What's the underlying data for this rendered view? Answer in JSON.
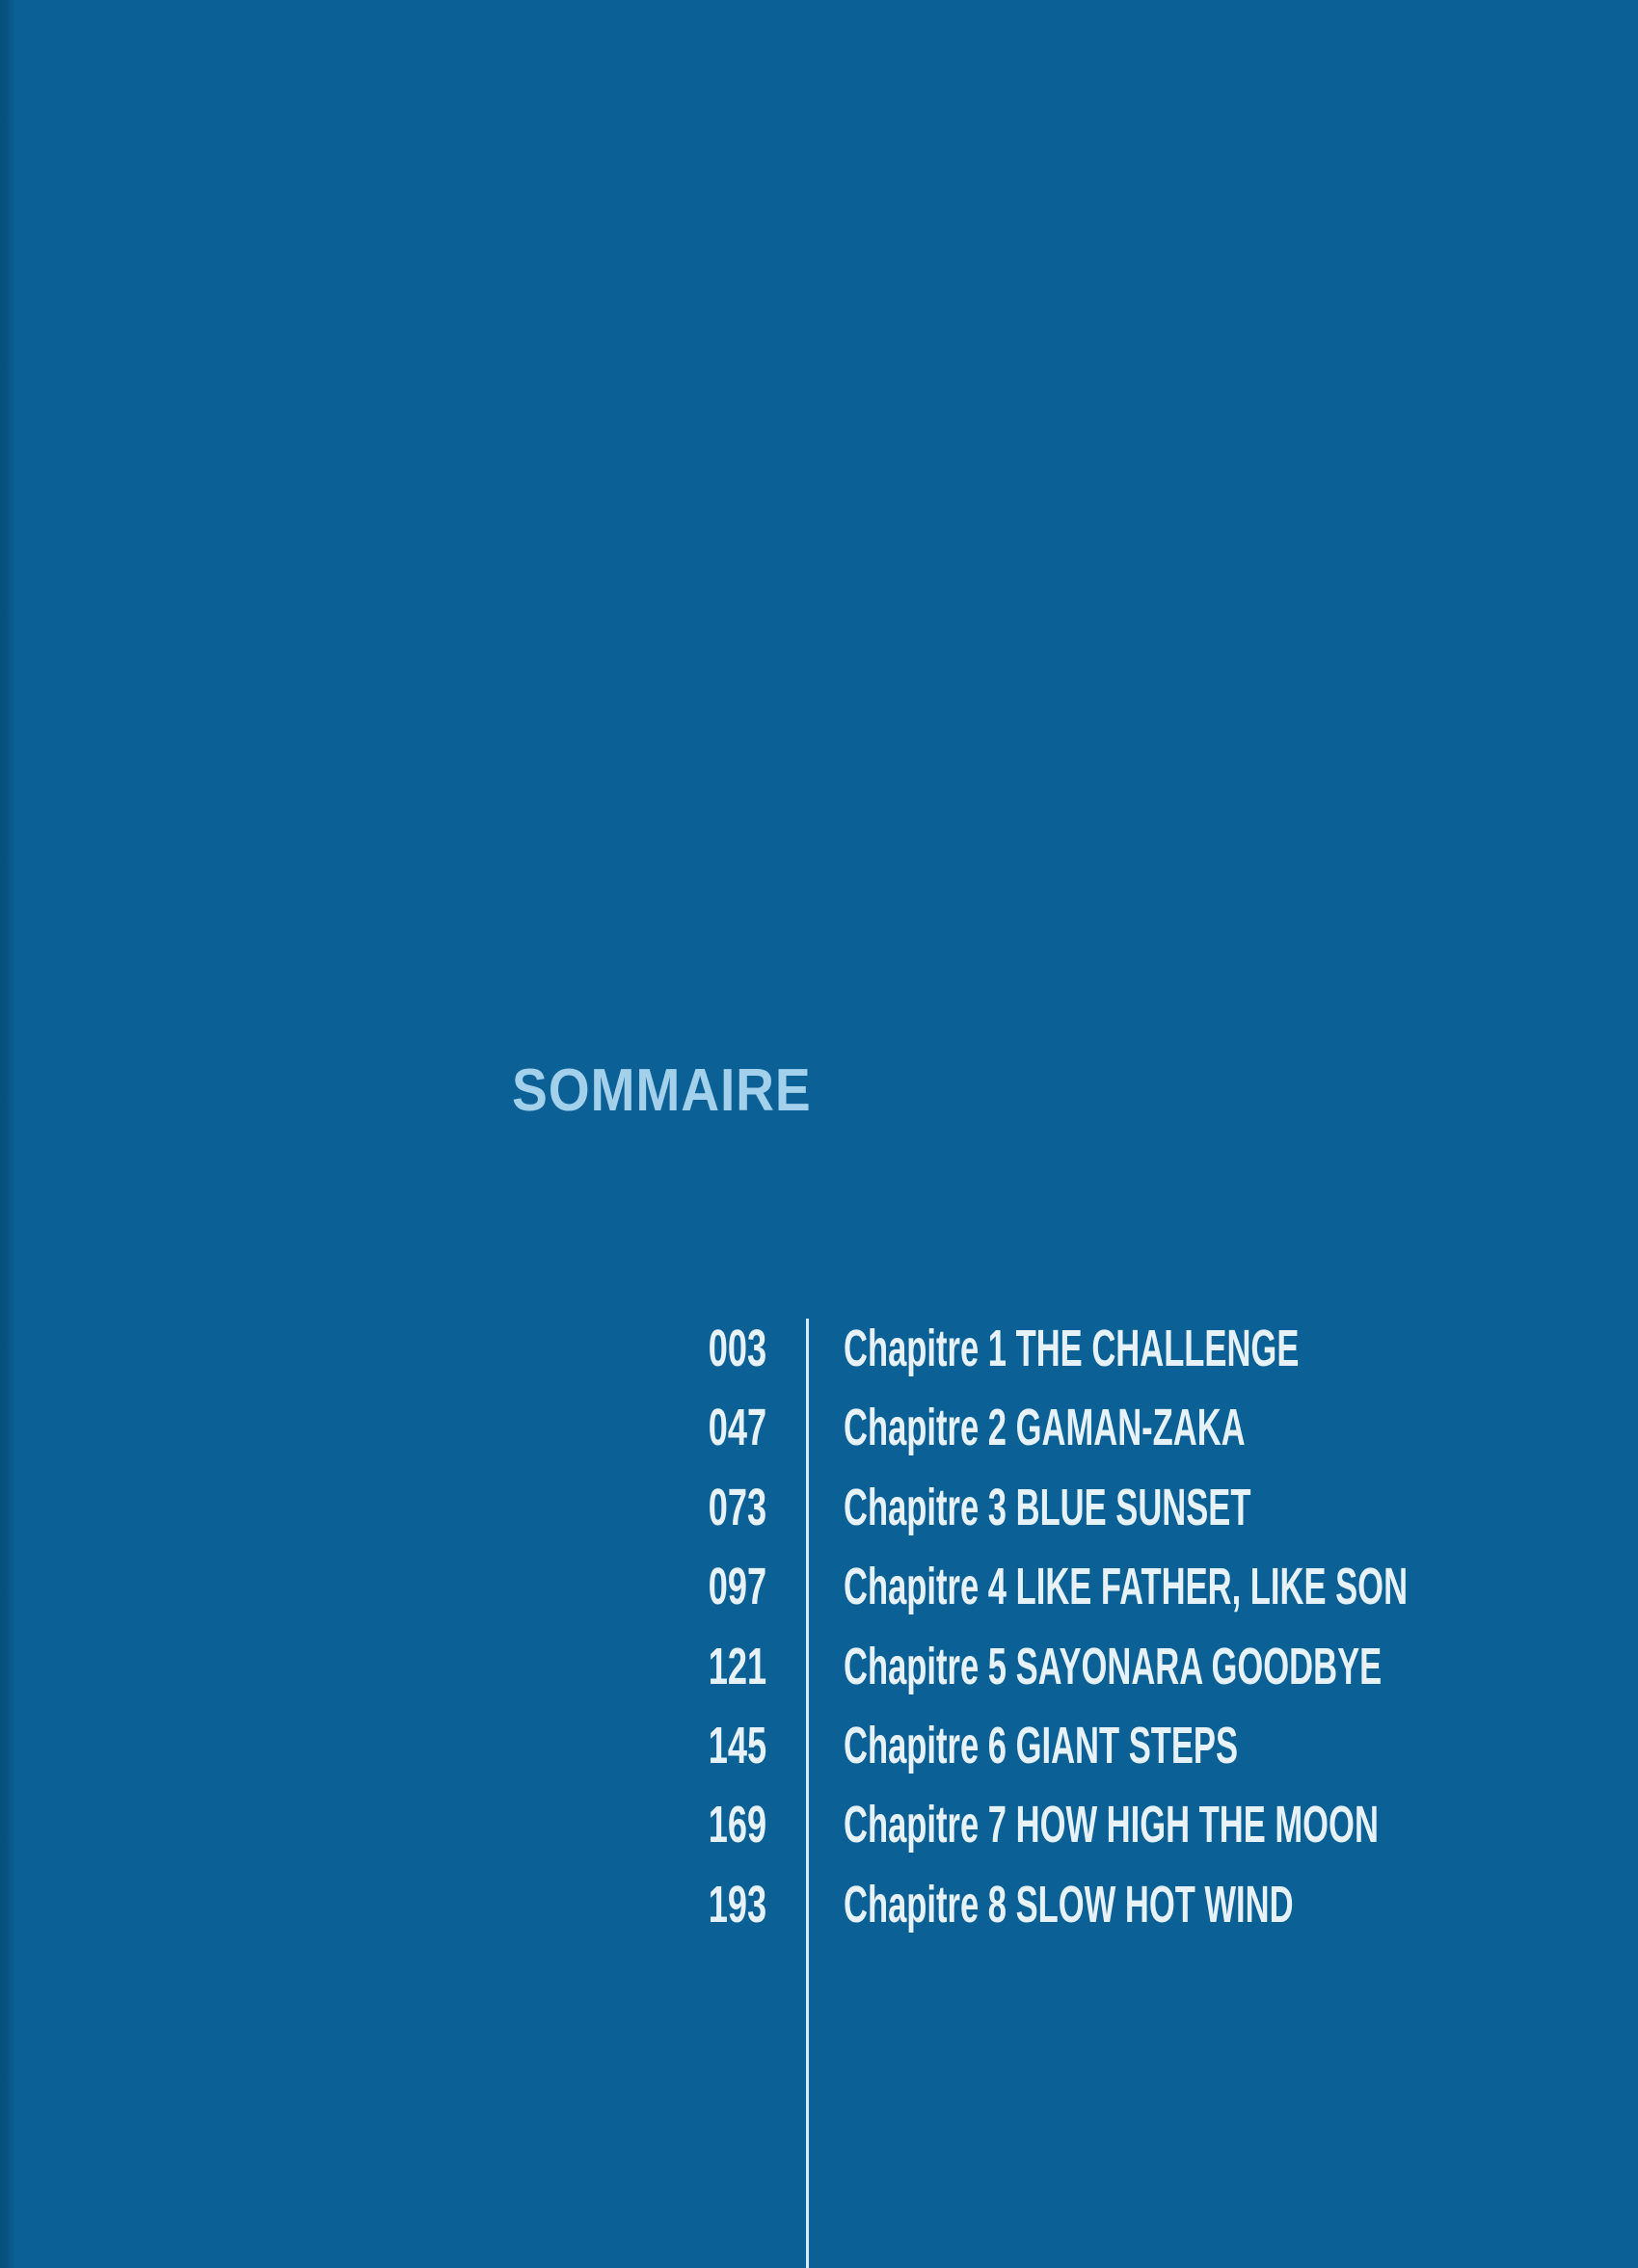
{
  "page": {
    "title": "SOMMAIRE",
    "colors": {
      "background": "#0b6095",
      "edge_shadow": "#07517f",
      "title": "#a3d0ea",
      "text": "#e6f2f8",
      "divider": "#d6ebf5"
    }
  },
  "chapters": [
    {
      "page": "003",
      "label": "Chapitre 1 THE CHALLENGE"
    },
    {
      "page": "047",
      "label": "Chapitre 2 GAMAN-ZAKA"
    },
    {
      "page": "073",
      "label": "Chapitre 3 BLUE SUNSET"
    },
    {
      "page": "097",
      "label": "Chapitre 4 LIKE FATHER, LIKE SON"
    },
    {
      "page": "121",
      "label": "Chapitre 5 SAYONARA GOODBYE"
    },
    {
      "page": "145",
      "label": "Chapitre 6 GIANT STEPS"
    },
    {
      "page": "169",
      "label": "Chapitre 7 HOW HIGH THE MOON"
    },
    {
      "page": "193",
      "label": "Chapitre 8 SLOW HOT WIND"
    }
  ]
}
